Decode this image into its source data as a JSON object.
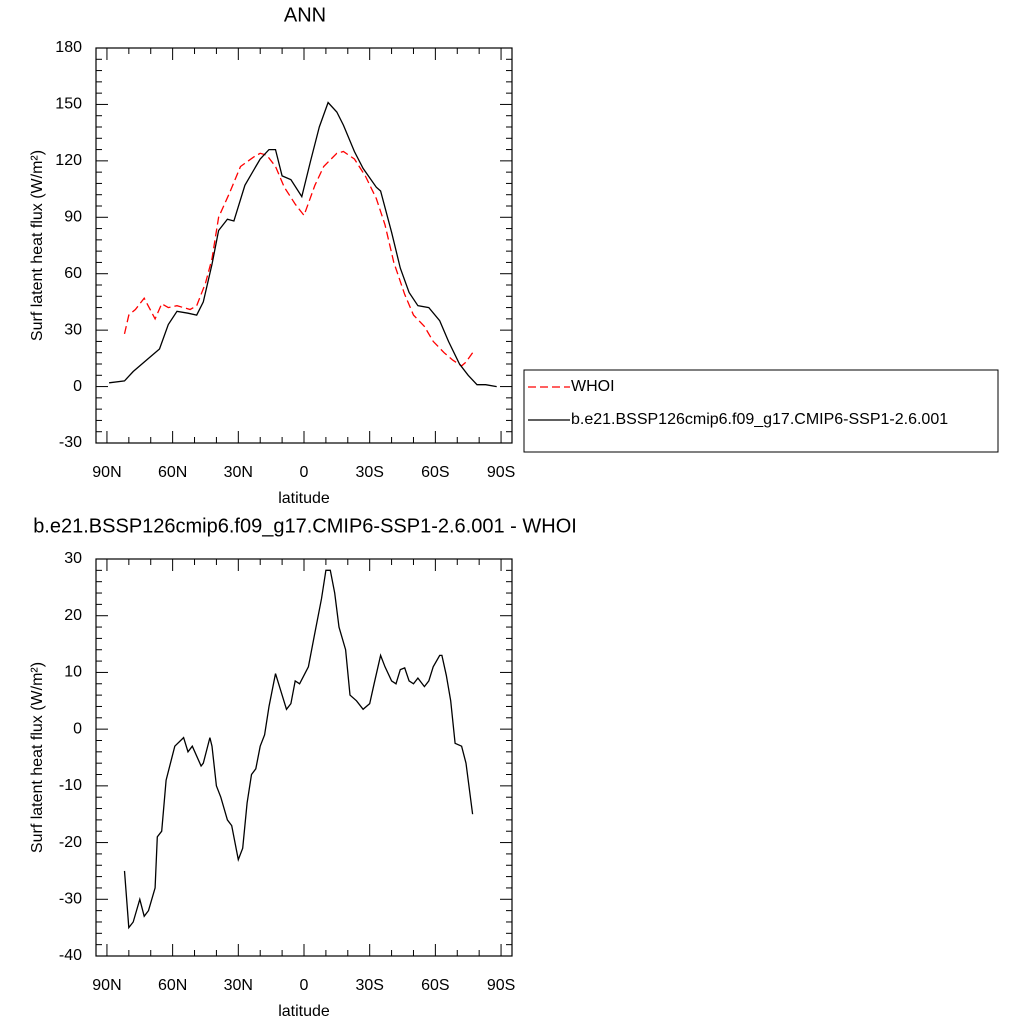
{
  "chart_data": [
    {
      "type": "line",
      "title": "ANN",
      "x_label": "latitude",
      "y_label": "Surf latent heat flux (W/m²)",
      "xlim": [
        95,
        -95
      ],
      "xticks": [
        {
          "value": 90,
          "label": "90N"
        },
        {
          "value": 60,
          "label": "60N"
        },
        {
          "value": 30,
          "label": "30N"
        },
        0,
        {
          "value": -30,
          "label": "30S"
        },
        {
          "value": -60,
          "label": "60S"
        },
        {
          "value": -90,
          "label": "90S"
        }
      ],
      "ylim": [
        -30,
        180
      ],
      "yticks": [
        -30,
        0,
        30,
        60,
        90,
        120,
        150,
        180
      ],
      "legend": "right",
      "series": [
        {
          "name": "WHOI",
          "color": "#ff0000",
          "style": "dashed",
          "x": [
            82,
            80,
            77,
            73,
            68,
            65,
            62,
            58,
            52,
            49,
            45,
            42,
            39,
            34,
            29,
            23,
            20,
            17,
            13,
            9,
            4,
            0,
            -5,
            -9,
            -15,
            -18,
            -23,
            -28,
            -33,
            -37,
            -41,
            -46,
            -50,
            -55,
            -59,
            -64,
            -68,
            -72,
            -74,
            -77
          ],
          "values": [
            28,
            38,
            41,
            47,
            36,
            44,
            42,
            43,
            41,
            43,
            55,
            68,
            90,
            103,
            117,
            122,
            124,
            123,
            117,
            106,
            97,
            91,
            107,
            117,
            124,
            125,
            121,
            112,
            100,
            86,
            66,
            49,
            38,
            32,
            24,
            18,
            14,
            11,
            13,
            18
          ]
        },
        {
          "name": "b.e21.BSSP126cmip6.f09_g17.CMIP6-SSP1-2.6.001",
          "color": "#000000",
          "style": "solid",
          "x": [
            89,
            82,
            78,
            71,
            66,
            62,
            58,
            53,
            49,
            46,
            42,
            39,
            35,
            32,
            27,
            22,
            20,
            16,
            13,
            10,
            6,
            1,
            -3,
            -7,
            -11,
            -15,
            -18,
            -23,
            -27,
            -33,
            -35,
            -40,
            -44,
            -48,
            -52,
            -57,
            -62,
            -66,
            -71,
            -75,
            -79,
            -83,
            -88
          ],
          "values": [
            2,
            3,
            8,
            15,
            20,
            33,
            40,
            39,
            38,
            45,
            65,
            83,
            89,
            88,
            107,
            117,
            121,
            126,
            126,
            112,
            110,
            101,
            120,
            138,
            151,
            146,
            139,
            125,
            116,
            106,
            104,
            82,
            63,
            50,
            43,
            42,
            35,
            24,
            12,
            6,
            1,
            1,
            0
          ]
        }
      ]
    },
    {
      "type": "line",
      "title": "b.e21.BSSP126cmip6.f09_g17.CMIP6-SSP1-2.6.001 - WHOI",
      "x_label": "latitude",
      "y_label": "Surf latent heat flux (W/m²)",
      "xlim": [
        95,
        -95
      ],
      "xticks": [
        {
          "value": 90,
          "label": "90N"
        },
        {
          "value": 60,
          "label": "60N"
        },
        {
          "value": 30,
          "label": "30N"
        },
        0,
        {
          "value": -30,
          "label": "30S"
        },
        {
          "value": -60,
          "label": "60S"
        },
        {
          "value": -90,
          "label": "90S"
        }
      ],
      "ylim": [
        -40,
        30
      ],
      "yticks": [
        -40,
        -30,
        -20,
        -10,
        0,
        10,
        20,
        30
      ],
      "series": [
        {
          "color": "#000000",
          "style": "solid",
          "x": [
            82,
            80,
            78,
            75,
            73,
            71,
            68,
            67,
            65,
            63,
            59,
            55,
            53,
            51,
            47,
            46,
            43,
            42,
            40,
            38,
            35,
            33,
            30,
            28,
            26,
            24,
            22,
            20,
            18,
            16,
            13,
            10,
            8,
            6,
            4,
            2,
            0,
            -2,
            -5,
            -8,
            -10,
            -12,
            -14,
            -16,
            -19,
            -21,
            -24,
            -27,
            -30,
            -32,
            -35,
            -37,
            -40,
            -42,
            -44,
            -46,
            -48,
            -50,
            -52,
            -55,
            -57,
            -59,
            -62,
            -63,
            -65,
            -67,
            -69,
            -72,
            -74,
            -77
          ],
          "values": [
            -25,
            -35,
            -34,
            -30,
            -33,
            -32,
            -28,
            -19,
            -18,
            -9,
            -3,
            -1.5,
            -4,
            -3,
            -6.5,
            -6,
            -1.5,
            -3,
            -10,
            -12,
            -16,
            -17,
            -23,
            -21,
            -13,
            -8,
            -7,
            -3,
            -1,
            4,
            9.8,
            6,
            3.5,
            4.5,
            8.5,
            8,
            9.5,
            11,
            17,
            23,
            28,
            28,
            24,
            18,
            14,
            6,
            5,
            3.5,
            4.5,
            8,
            13,
            11,
            8.5,
            8,
            10.5,
            10.8,
            8.5,
            8,
            9,
            7.5,
            8.5,
            11,
            13,
            13,
            9.5,
            5,
            -2.5,
            -3,
            -6,
            -15
          ]
        }
      ]
    }
  ]
}
